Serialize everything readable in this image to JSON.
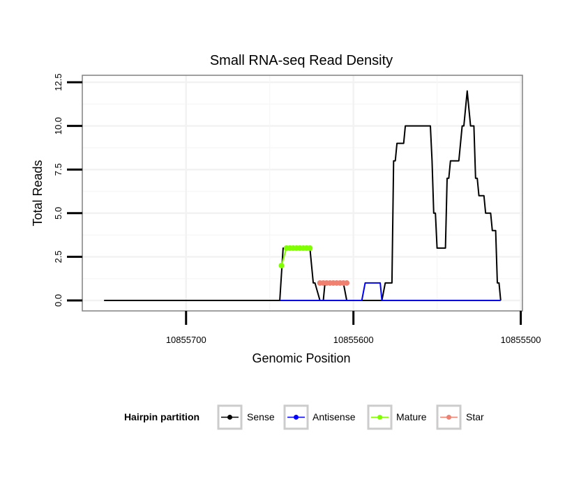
{
  "chart_data": {
    "type": "line",
    "title": "Small RNA-seq Read Density",
    "xlabel": "Genomic Position",
    "ylabel": "Total Reads",
    "x_reversed": true,
    "xlim": [
      10855762,
      10855499
    ],
    "ylim": [
      -0.6,
      12.9
    ],
    "x_ticks": [
      10855700,
      10855600,
      10855500
    ],
    "x_tick_labels": [
      "10855700",
      "10855600",
      "10855500"
    ],
    "y_ticks": [
      0,
      2.5,
      5,
      7.5,
      10,
      12.5
    ],
    "y_tick_labels": [
      "0.0",
      "2.5",
      "5.0",
      "7.5",
      "10.0",
      "12.5"
    ],
    "grid": true,
    "legend": {
      "title": "Hairpin partition",
      "position": "bottom",
      "entries": [
        "Sense",
        "Antisense",
        "Mature",
        "Star"
      ]
    },
    "series": [
      {
        "name": "Sense",
        "color": "#000000",
        "style": "line",
        "points": [
          [
            10855749,
            0
          ],
          [
            10855737,
            0
          ],
          [
            10855726,
            0
          ],
          [
            10855713,
            0
          ],
          [
            10855700,
            0
          ],
          [
            10855688,
            0
          ],
          [
            10855676,
            0
          ],
          [
            10855664,
            0
          ],
          [
            10855652,
            0
          ],
          [
            10855640,
            0
          ],
          [
            10855629,
            0
          ],
          [
            10855618,
            0
          ],
          [
            10855609,
            0
          ],
          [
            10855605,
            0
          ],
          [
            10855644,
            0
          ],
          [
            10855642,
            3
          ],
          [
            10855641,
            3
          ],
          [
            10855626,
            3
          ],
          [
            10855624,
            1
          ],
          [
            10855623,
            1
          ],
          [
            10855620,
            0
          ],
          [
            10855618,
            0
          ],
          [
            10855617,
            1
          ],
          [
            10855606,
            1
          ],
          [
            10855604,
            0
          ],
          [
            10855596,
            0
          ],
          [
            10855583,
            0
          ],
          [
            10855581,
            1
          ],
          [
            10855577,
            1
          ],
          [
            10855576,
            8
          ],
          [
            10855575,
            8
          ],
          [
            10855574,
            9
          ],
          [
            10855570,
            9
          ],
          [
            10855569,
            10
          ],
          [
            10855554,
            10
          ],
          [
            10855553,
            8
          ],
          [
            10855552,
            5
          ],
          [
            10855551,
            5
          ],
          [
            10855550,
            3
          ],
          [
            10855545,
            3
          ],
          [
            10855544,
            7
          ],
          [
            10855543,
            7
          ],
          [
            10855542,
            8
          ],
          [
            10855537,
            8
          ],
          [
            10855536,
            9
          ],
          [
            10855535,
            10
          ],
          [
            10855534,
            10
          ],
          [
            10855532,
            12
          ],
          [
            10855531,
            11
          ],
          [
            10855530,
            10
          ],
          [
            10855528,
            10
          ],
          [
            10855527,
            7
          ],
          [
            10855526,
            7
          ],
          [
            10855525,
            6
          ],
          [
            10855522,
            6
          ],
          [
            10855521,
            5
          ],
          [
            10855518,
            5
          ],
          [
            10855517,
            4
          ],
          [
            10855515,
            4
          ],
          [
            10855514,
            1
          ],
          [
            10855513,
            1
          ],
          [
            10855512,
            0
          ]
        ]
      },
      {
        "name": "Antisense",
        "color": "#0000ff",
        "style": "line",
        "points": [
          [
            10855644,
            0
          ],
          [
            10855604,
            0
          ],
          [
            10855600,
            0
          ],
          [
            10855595,
            0
          ],
          [
            10855593,
            1
          ],
          [
            10855584,
            1
          ],
          [
            10855583,
            0
          ],
          [
            10855560,
            0
          ],
          [
            10855540,
            0
          ],
          [
            10855520,
            0
          ],
          [
            10855512,
            0
          ]
        ]
      },
      {
        "name": "Mature",
        "color": "#7fff00",
        "style": "points",
        "points": [
          [
            10855643,
            2
          ],
          [
            10855640,
            3
          ],
          [
            10855638,
            3
          ],
          [
            10855636,
            3
          ],
          [
            10855634,
            3
          ],
          [
            10855632,
            3
          ],
          [
            10855630,
            3
          ],
          [
            10855628,
            3
          ],
          [
            10855626,
            3
          ]
        ]
      },
      {
        "name": "Star",
        "color": "#f08070",
        "style": "points",
        "points": [
          [
            10855620,
            1
          ],
          [
            10855618,
            1
          ],
          [
            10855616,
            1
          ],
          [
            10855614,
            1
          ],
          [
            10855612,
            1
          ],
          [
            10855610,
            1
          ],
          [
            10855608,
            1
          ],
          [
            10855606,
            1
          ],
          [
            10855604,
            1
          ]
        ]
      }
    ]
  }
}
